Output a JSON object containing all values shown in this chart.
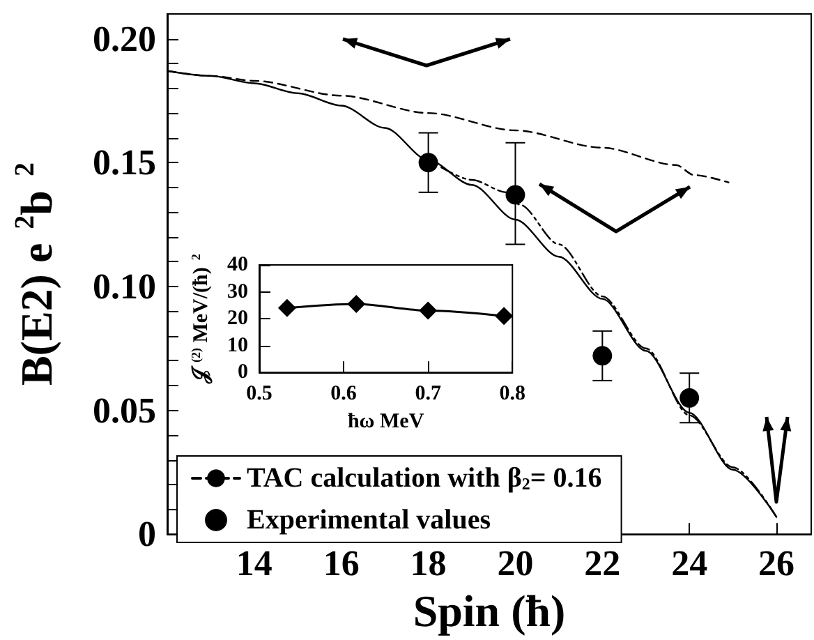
{
  "chart_data": [
    {
      "type": "line",
      "xlabel": "Spin (ħ)",
      "ylabel": "B(E2) e$^{2}$b$^{2}$",
      "xlim": [
        12,
        26.8
      ],
      "ylim": [
        0,
        0.21
      ],
      "xticks": [
        14,
        16,
        18,
        20,
        22,
        24,
        26
      ],
      "yticks": [
        0,
        {
          "value": 0.01,
          "label": null
        },
        {
          "value": 0.02,
          "label": null
        },
        {
          "value": 0.03,
          "label": null
        },
        {
          "value": 0.04,
          "label": null
        },
        {
          "value": 0.05,
          "label": "0.05"
        },
        {
          "value": 0.06,
          "label": null
        },
        {
          "value": 0.07,
          "label": null
        },
        {
          "value": 0.08,
          "label": null
        },
        {
          "value": 0.09,
          "label": null
        },
        {
          "value": 0.1,
          "label": "0.10"
        },
        {
          "value": 0.11,
          "label": null
        },
        {
          "value": 0.12,
          "label": null
        },
        {
          "value": 0.13,
          "label": null
        },
        {
          "value": 0.14,
          "label": null
        },
        {
          "value": 0.15,
          "label": "0.15"
        },
        {
          "value": 0.16,
          "label": null
        },
        {
          "value": 0.17,
          "label": null
        },
        {
          "value": 0.18,
          "label": null
        },
        {
          "value": 0.19,
          "label": null
        },
        {
          "value": 0.2,
          "label": "0.20"
        }
      ],
      "legend": "bottom left",
      "series": [
        {
          "name": "TAC calculation with β$_{2}$= 0.16",
          "line_style": "dashed",
          "marker": "none",
          "color": "#000000",
          "x": [
            12,
            13,
            14,
            16,
            18,
            20,
            22,
            23.7,
            24.1,
            24.9
          ],
          "values": [
            0.187,
            0.185,
            0.183,
            0.177,
            0.17,
            0.163,
            0.156,
            0.149,
            0.145,
            0.142
          ]
        },
        {
          "line_style": "solid",
          "marker": "none",
          "color": "#000000",
          "x": [
            12,
            13,
            14,
            15,
            16,
            17,
            18,
            19,
            20,
            21,
            22,
            23,
            24,
            25,
            26
          ],
          "values": [
            0.187,
            0.185,
            0.182,
            0.178,
            0.173,
            0.164,
            0.151,
            0.141,
            0.127,
            0.112,
            0.095,
            0.074,
            0.049,
            0.026,
            0.007
          ]
        },
        {
          "line_style": "dotted",
          "marker": "none",
          "color": "#000000",
          "x": [
            18.3,
            19,
            19.8,
            20.1,
            21,
            22,
            23,
            24,
            25,
            26
          ],
          "values": [
            0.148,
            0.143,
            0.138,
            0.133,
            0.117,
            0.096,
            0.075,
            0.048,
            0.027,
            0.007
          ]
        },
        {
          "name": "Experimental values",
          "type": "scatter",
          "marker": "circle",
          "color": "#000000",
          "x": [
            18,
            20,
            22,
            24
          ],
          "values": [
            0.15,
            0.137,
            0.072,
            0.055
          ],
          "errors": [
            [
              0.138,
              0.162
            ],
            [
              0.117,
              0.158
            ],
            [
              0.062,
              0.082
            ],
            [
              0.045,
              0.065
            ]
          ]
        }
      ]
    },
    {
      "type": "line",
      "xlabel": "ħω MeV",
      "ylabel": "𝒥$^{(2)}$ MeV/(ħ)$^{2}$",
      "xlim": [
        0.5,
        0.8
      ],
      "ylim": [
        0,
        40
      ],
      "xticks": [
        0.5,
        0.6,
        0.7,
        0.8
      ],
      "yticks": [
        0,
        10,
        20,
        30,
        40
      ],
      "series": [
        {
          "line_style": "solid",
          "marker": "diamond",
          "color": "#000000",
          "x": [
            0.533,
            0.615,
            0.7,
            0.79
          ],
          "values": [
            24,
            25.5,
            23,
            21
          ]
        }
      ]
    }
  ]
}
